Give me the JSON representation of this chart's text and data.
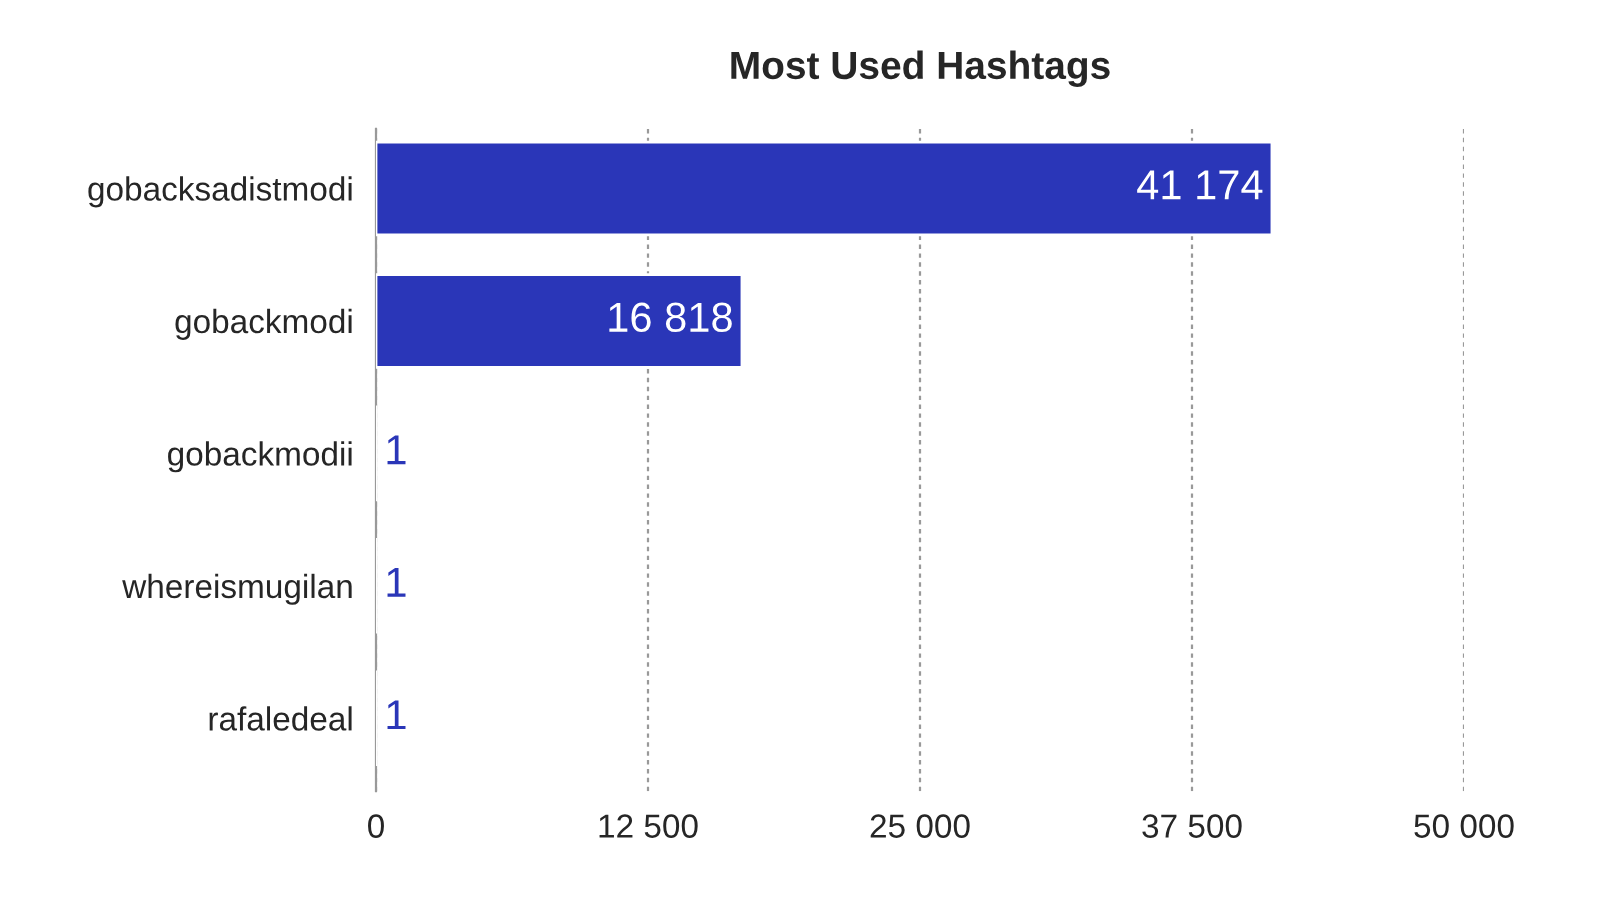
{
  "chart_data": {
    "type": "bar",
    "orientation": "horizontal",
    "title": "Most Used Hashtags",
    "categories": [
      "gobacksadistmodi",
      "gobackmodi",
      "gobackmodii",
      "whereismugilan",
      "rafaledeal"
    ],
    "values": [
      41174,
      16818,
      1,
      1,
      1
    ],
    "value_labels": [
      "41 174",
      "16 818",
      "1",
      "1",
      "1"
    ],
    "color": "#2a36b8",
    "xlim": [
      0,
      50000
    ],
    "xticks": [
      0,
      {
        "value": 12500,
        "label": "12 500"
      },
      {
        "value": 25000,
        "label": "25 000"
      },
      {
        "value": 37500,
        "label": "37 500"
      },
      {
        "value": 50000,
        "label": "50 000"
      }
    ],
    "grid": "x",
    "legend": false
  }
}
